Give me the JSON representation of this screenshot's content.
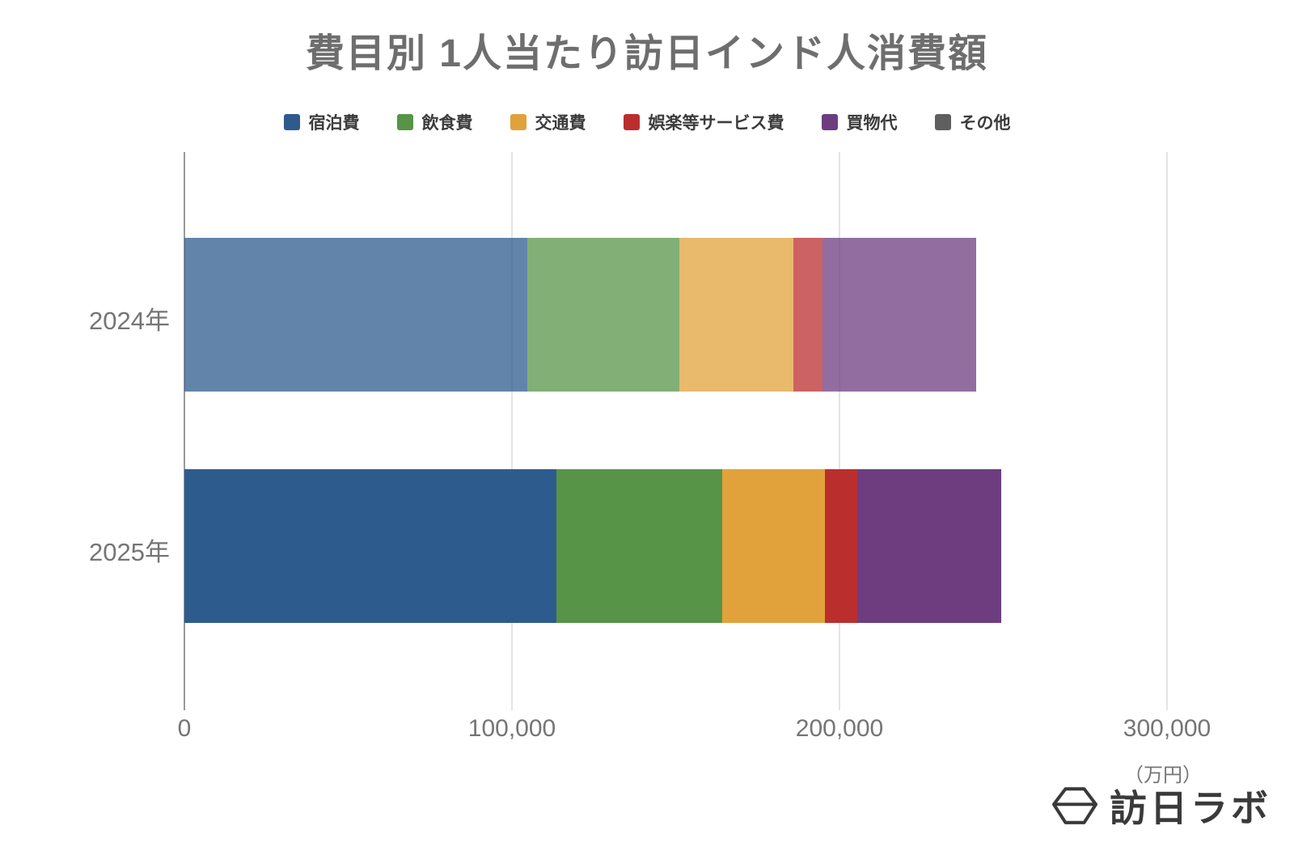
{
  "title": "費目別 1人当たり訪日インド人消費額",
  "unit_label": "（万円）",
  "logo_text": "訪日ラボ",
  "colors": {
    "title_text": "#6e6e6e",
    "legend_text": "#3c3c3c",
    "axis_text": "#757575",
    "grid": "#e4e4e4",
    "axis": "#9a9a9a",
    "logo": "#3a3a3a"
  },
  "chart_data": {
    "type": "bar",
    "orientation": "horizontal",
    "stacked": true,
    "title": "費目別 1人当たり訪日インド人消費額",
    "categories": [
      "2024年",
      "2025年"
    ],
    "series": [
      {
        "name": "宿泊費",
        "color": "#2e5b8e",
        "values": [
          104700,
          113600
        ]
      },
      {
        "name": "飲食費",
        "color": "#579447",
        "values": [
          46400,
          50600
        ]
      },
      {
        "name": "交通費",
        "color": "#e2a23b",
        "values": [
          34800,
          31400
        ]
      },
      {
        "name": "娯楽等サービス費",
        "color": "#bb2e2e",
        "values": [
          8900,
          9900
        ]
      },
      {
        "name": "買物代",
        "color": "#6d3d80",
        "values": [
          46900,
          44000
        ]
      },
      {
        "name": "その他",
        "color": "#5f5f5f",
        "values": [
          0,
          0
        ]
      }
    ],
    "totals": [
      241700,
      249500
    ],
    "x_ticks": [
      "0",
      "100,000",
      "200,000",
      "300,000"
    ],
    "x_tick_values": [
      0,
      100000,
      200000,
      300000
    ],
    "xlim": [
      0,
      330000
    ],
    "xlabel_unit": "（万円）",
    "legend_position": "top",
    "grid": true,
    "note_previous_year_muted": "2024 row drawn at reduced opacity"
  }
}
